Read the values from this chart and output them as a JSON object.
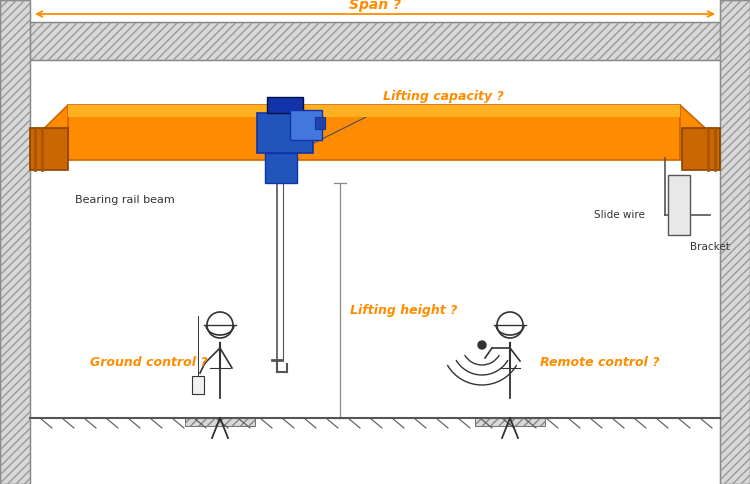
{
  "bg_color": "#ffffff",
  "orange": "#FF8C00",
  "dark_orange": "#CC6600",
  "orange_light": "#FFB020",
  "blue": "#2255BB",
  "blue_dark": "#1133AA",
  "blue_light": "#4477DD",
  "wall_fill": "#d8d8d8",
  "wall_edge": "#666666",
  "line_color": "#555555",
  "text_dark": "#333333",
  "label_span": "Span ?",
  "label_lifting_capacity": "Lifting capacity ?",
  "label_lifting_height": "Lifting height ?",
  "label_ground_control": "Ground control ?",
  "label_remote_control": "Remote control ?",
  "label_bearing_rail": "Bearing rail beam",
  "label_slide_wire": "Slide wire",
  "label_bracket": "Bracket"
}
